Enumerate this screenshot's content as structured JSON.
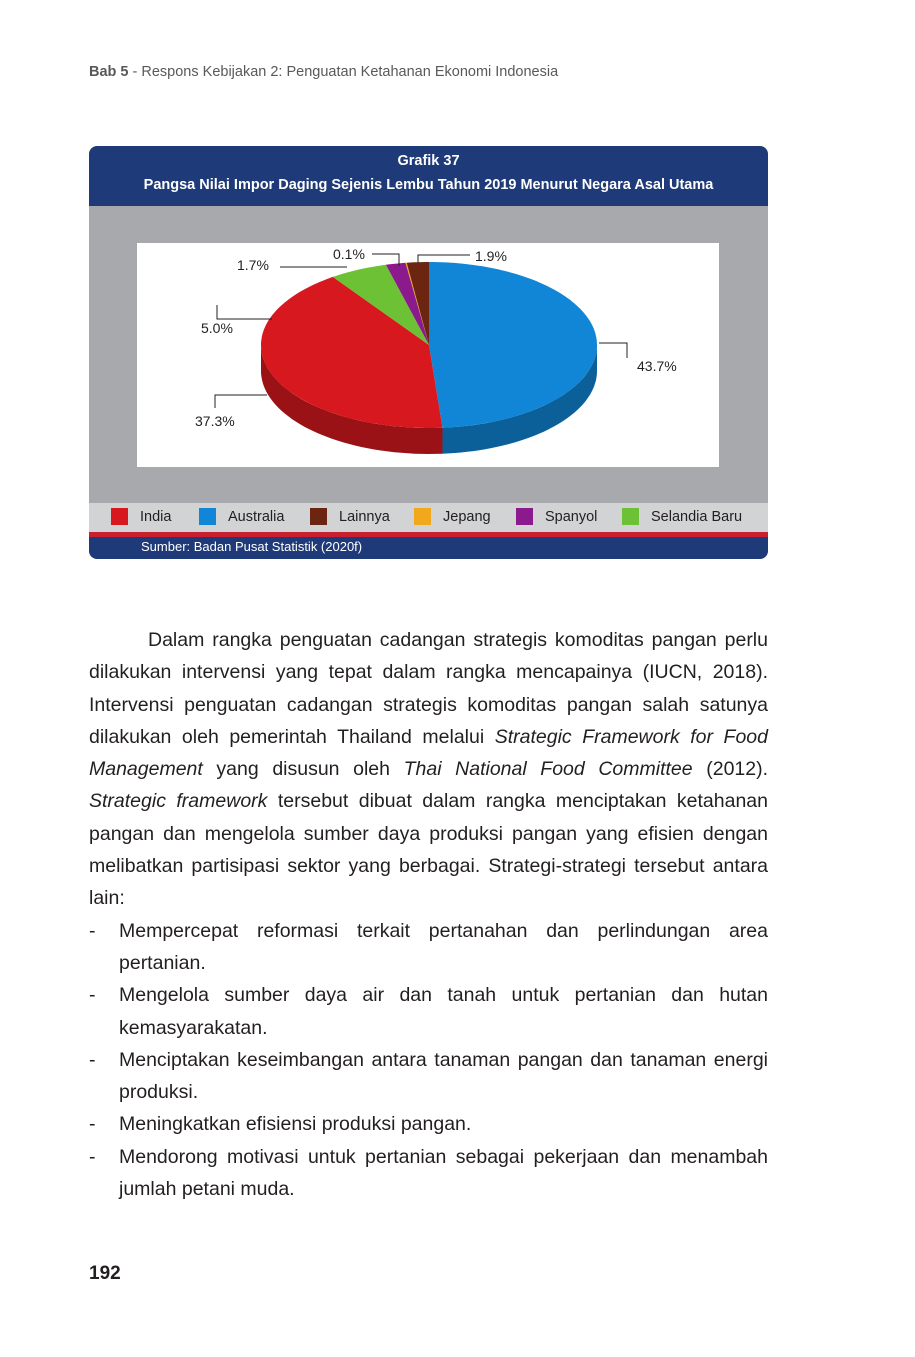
{
  "header": {
    "chapter": "Bab 5",
    "title": " - Respons Kebijakan 2: Penguatan Ketahanan Ekonomi Indonesia"
  },
  "figure": {
    "number": "Grafik 37",
    "title": "Pangsa Nilai Impor Daging Sejenis Lembu Tahun 2019 Menurut Negara Asal Utama",
    "source": "Sumber: Badan Pusat Statistik (2020f)"
  },
  "chart_data": {
    "type": "pie",
    "title": "Pangsa Nilai Impor Daging Sejenis Lembu Tahun 2019 Menurut Negara Asal Utama",
    "categories": [
      "Australia",
      "India",
      "Selandia Baru",
      "Spanyol",
      "Jepang",
      "Lainnya"
    ],
    "values": [
      43.7,
      37.3,
      5.0,
      1.7,
      0.1,
      1.9
    ],
    "labels": [
      "43.7%",
      "37.3%",
      "5.0%",
      "1.7%",
      "0.1%",
      "1.9%"
    ],
    "colors": {
      "India": "#d7191f",
      "Australia": "#1186d6",
      "Lainnya": "#6b2511",
      "Jepang": "#f2a81c",
      "Spanyol": "#8b1a8c",
      "Selandia Baru": "#6cc134"
    },
    "legend_order": [
      "India",
      "Australia",
      "Lainnya",
      "Jepang",
      "Spanyol",
      "Selandia Baru"
    ],
    "legend_position": "bottom"
  },
  "paragraph": {
    "p1": "Dalam rangka penguatan cadangan strategis komoditas pangan perlu dilakukan intervensi yang tepat dalam rangka mencapainya (IUCN, 2018). Intervensi penguatan cadangan strategis komoditas pangan salah satunya dilakukan oleh pemerintah Thailand melalui ",
    "i1": "Strategic Framework for Food Management",
    "p2": " yang disusun oleh ",
    "i2": "Thai National Food Committee",
    "p3": " (2012). ",
    "i3": "Strategic framework",
    "p4": " tersebut dibuat dalam rangka menciptakan ketahanan pangan dan mengelola sumber daya produksi pangan yang efisien dengan melibatkan partisipasi sektor yang berbagai. Strategi-strategi tersebut antara lain:"
  },
  "bullets": [
    "Mempercepat reformasi terkait pertanahan dan perlindungan area pertanian.",
    "Mengelola sumber daya air dan tanah untuk pertanian dan hutan kemasyarakatan.",
    "Menciptakan keseimbangan antara tanaman pangan dan tanaman energi produksi.",
    "Meningkatkan efisiensi produksi pangan.",
    "Mendorong motivasi untuk pertanian sebagai pekerjaan dan menambah jumlah petani muda."
  ],
  "bullet_marker": "-",
  "page_number": "192"
}
